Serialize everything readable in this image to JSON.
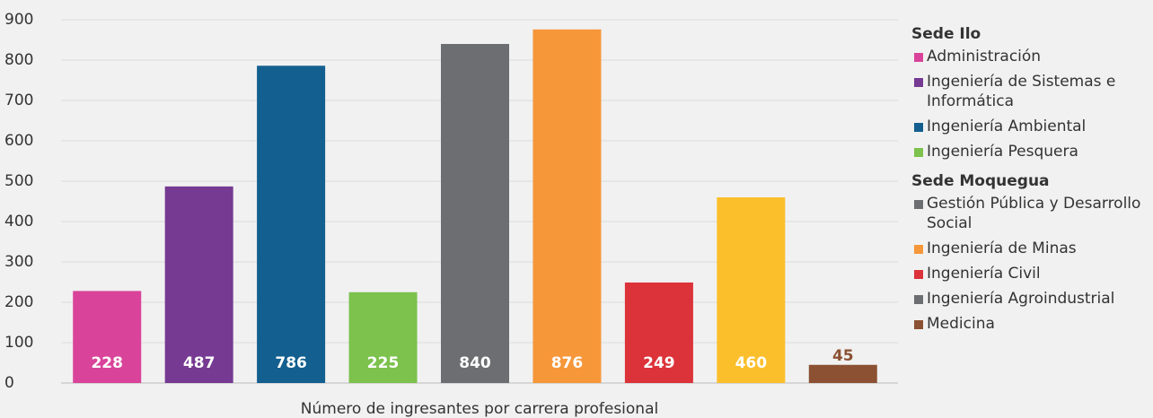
{
  "chart_data": {
    "type": "bar",
    "xlabel": "Número de ingresantes por carrera profesional",
    "ylim": [
      0,
      900
    ],
    "yticks": [
      0,
      100,
      200,
      300,
      400,
      500,
      600,
      700,
      800,
      900
    ],
    "grid": true,
    "groups": [
      {
        "name": "Sede Ilo",
        "categories": [
          "Administración",
          "Ingeniería de Sistemas e Informática",
          "Ingeniería Ambiental",
          "Ingeniería Pesquera"
        ],
        "values": [
          228,
          487,
          786,
          225
        ],
        "colors": [
          "#d9449a",
          "#763a92",
          "#135f8f",
          "#7cc24d"
        ],
        "legend_colors": [
          "#d9449a",
          "#763a92",
          "#135f8f",
          "#7cc24d"
        ]
      },
      {
        "name": "Sede Moquegua",
        "categories": [
          "Gestión Pública y Desarrollo Social",
          "Ingeniería de Minas",
          "Ingeniería Civil",
          "Ingeniería Agroindustrial",
          "Medicina"
        ],
        "values": [
          840,
          876,
          249,
          460,
          45
        ],
        "colors": [
          "#6d6e71",
          "#f6973a",
          "#dc3239",
          "#fbbf2b",
          "#8b5132"
        ],
        "legend_colors": [
          "#6d6e71",
          "#f6973a",
          "#dc3239",
          "#6d6e71",
          "#8b5132"
        ]
      }
    ]
  }
}
